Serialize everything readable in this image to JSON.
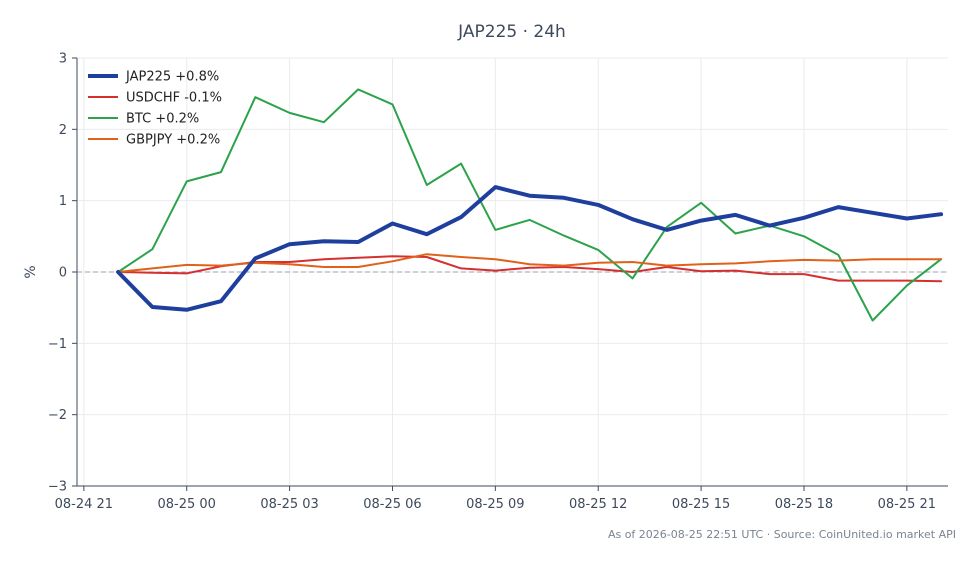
{
  "chart_data": {
    "type": "line",
    "title": "JAP225 · 24h",
    "xlabel": "",
    "ylabel": "%",
    "ylim": [
      -3,
      3
    ],
    "y_ticks": [
      3,
      2,
      1,
      0,
      -1,
      -2,
      -3
    ],
    "y_tick_labels": [
      "3",
      "2",
      "1",
      "0",
      "−1",
      "−2",
      "−3"
    ],
    "x_ticks": [
      {
        "hour": 21,
        "label": "08-24 21"
      },
      {
        "hour": 24,
        "label": "08-25 00"
      },
      {
        "hour": 27,
        "label": "08-25 03"
      },
      {
        "hour": 30,
        "label": "08-25 06"
      },
      {
        "hour": 33,
        "label": "08-25 09"
      },
      {
        "hour": 36,
        "label": "08-25 12"
      },
      {
        "hour": 39,
        "label": "08-25 15"
      },
      {
        "hour": 42,
        "label": "08-25 18"
      },
      {
        "hour": 45,
        "label": "08-25 21"
      }
    ],
    "xlim": [
      20.8,
      46.2
    ],
    "x": [
      22,
      23,
      24,
      25,
      26,
      27,
      28,
      29,
      30,
      31,
      32,
      33,
      34,
      35,
      36,
      37,
      38,
      39,
      40,
      41,
      42,
      43,
      44,
      45,
      46
    ],
    "grid": true,
    "zero_line": true,
    "legend_position": "top-left",
    "series": [
      {
        "name": "JAP225 +0.8%",
        "color": "#1f3f9e",
        "width": 4,
        "values": [
          0.0,
          -0.49,
          -0.53,
          -0.41,
          0.19,
          0.39,
          0.43,
          0.42,
          0.68,
          0.53,
          0.77,
          1.19,
          1.07,
          1.04,
          0.94,
          0.74,
          0.59,
          0.72,
          0.8,
          0.65,
          0.76,
          0.91,
          0.83,
          0.75,
          0.81
        ]
      },
      {
        "name": "USDCHF -0.1%",
        "color": "#d62f2f",
        "width": 2,
        "values": [
          0.0,
          -0.01,
          -0.02,
          0.08,
          0.14,
          0.14,
          0.18,
          0.2,
          0.22,
          0.21,
          0.05,
          0.02,
          0.06,
          0.07,
          0.04,
          0.0,
          0.07,
          0.01,
          0.02,
          -0.03,
          -0.03,
          -0.12,
          -0.12,
          -0.12,
          -0.13
        ]
      },
      {
        "name": "BTC +0.2%",
        "color": "#2ca24a",
        "width": 2,
        "values": [
          0.0,
          0.32,
          1.27,
          1.4,
          2.45,
          2.23,
          2.1,
          2.56,
          2.35,
          1.22,
          1.52,
          0.59,
          0.73,
          0.51,
          0.31,
          -0.09,
          0.63,
          0.97,
          0.54,
          0.65,
          0.5,
          0.24,
          -0.68,
          -0.19,
          0.18
        ]
      },
      {
        "name": "GBPJPY +0.2%",
        "color": "#e0621a",
        "width": 2,
        "values": [
          0.0,
          0.05,
          0.1,
          0.09,
          0.13,
          0.11,
          0.07,
          0.07,
          0.15,
          0.25,
          0.21,
          0.18,
          0.11,
          0.09,
          0.13,
          0.14,
          0.09,
          0.11,
          0.12,
          0.15,
          0.17,
          0.16,
          0.18,
          0.18,
          0.18
        ]
      }
    ],
    "annotation": "As of 2026-08-25 22:51 UTC · Source: CoinUnited.io market API"
  }
}
